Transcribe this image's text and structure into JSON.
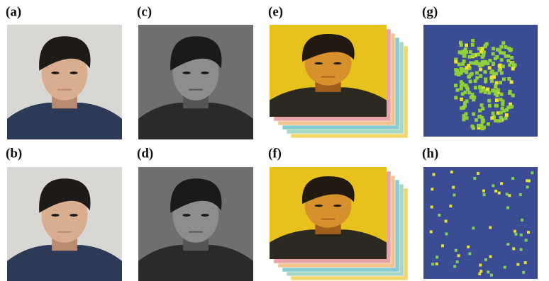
{
  "labels": [
    "(a)",
    "(c)",
    "(e)",
    "(g)",
    "(b)",
    "(d)",
    "(f)",
    "(h)"
  ]
}
